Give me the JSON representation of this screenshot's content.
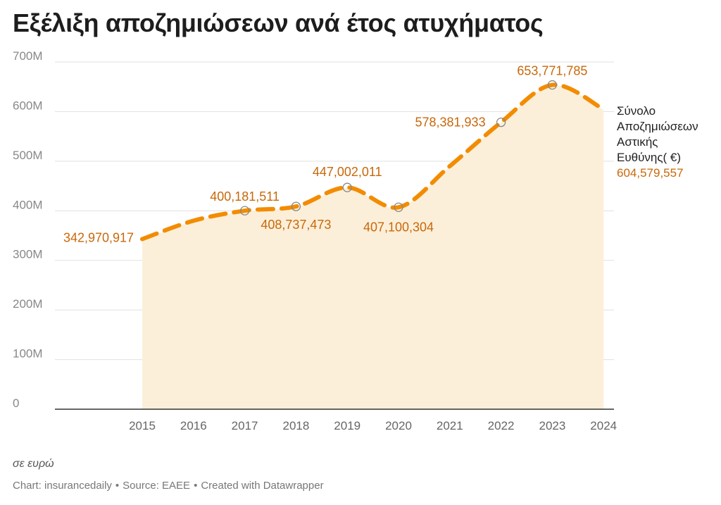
{
  "title": "Εξέλιξη αποζημιώσεων ανά έτος ατυχήματος",
  "notes": "σε ευρώ",
  "footer": {
    "chart_credit": "Chart: insurancedaily",
    "source": "Source: EAEE",
    "created_with": "Created with Datawrapper",
    "separator": "•"
  },
  "colors": {
    "line": "#f28c00",
    "area": "#fcefd9",
    "label": "#c8680a",
    "grid": "#e1e1e1",
    "axis": "#333333",
    "tick": "#888888"
  },
  "chart_data": {
    "type": "area",
    "title": "Εξέλιξη αποζημιώσεων ανά έτος ατυχήματος",
    "xlabel": "",
    "ylabel": "",
    "ylim": [
      0,
      700000000
    ],
    "yticks": [
      0,
      100000000,
      200000000,
      300000000,
      400000000,
      500000000,
      600000000,
      700000000
    ],
    "ytick_labels": [
      "0",
      "100M",
      "200M",
      "300M",
      "400M",
      "500M",
      "600M",
      "700M"
    ],
    "categories": [
      "2015",
      "2016",
      "2017",
      "2018",
      "2019",
      "2020",
      "2021",
      "2022",
      "2023",
      "2024"
    ],
    "series": [
      {
        "name": "Σύνολο Αποζημιώσεων Αστικής Ευθύνης( €)",
        "name_lines": [
          "Σύνολο",
          "Αποζημιώσεων",
          "Αστικής",
          "Ευθύνης( €)"
        ],
        "values": [
          342970917,
          380000000,
          400181511,
          408737473,
          447002011,
          407100304,
          490000000,
          578381933,
          653771785,
          604579557
        ],
        "labels": [
          "342,970,917",
          "",
          "400,181,511",
          "408,737,473",
          "447,002,011",
          "407,100,304",
          "",
          "578,381,933",
          "653,771,785",
          "604,579,557"
        ]
      }
    ]
  }
}
